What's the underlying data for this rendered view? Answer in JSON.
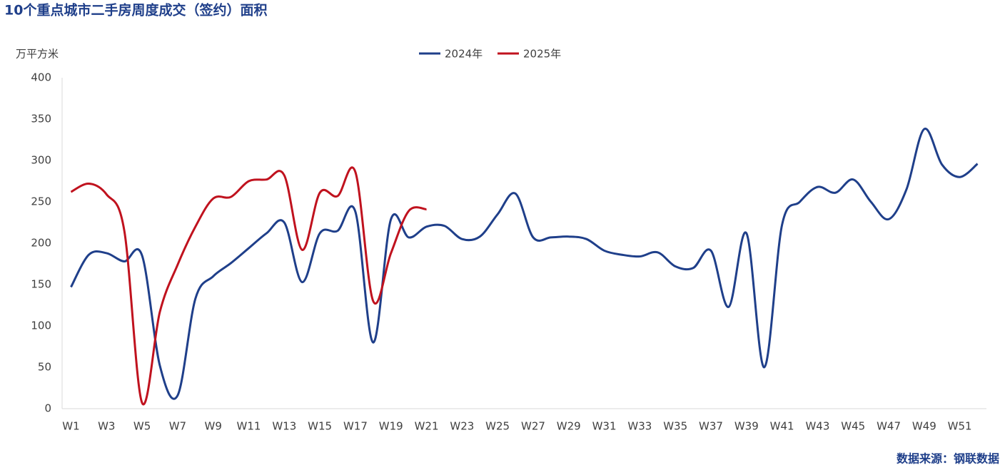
{
  "chart_data": {
    "type": "line",
    "title": "10个重点城市二手房周度成交（签约）面积",
    "y_label": "万平方米",
    "source": "数据来源：钢联数据",
    "categories": [
      "W1",
      null,
      "W3",
      null,
      "W5",
      null,
      "W7",
      null,
      "W9",
      null,
      "W11",
      null,
      "W13",
      null,
      "W15",
      null,
      "W17",
      null,
      "W19",
      null,
      "W21",
      null,
      "W23",
      null,
      "W25",
      null,
      "W27",
      null,
      "W29",
      null,
      "W31",
      null,
      "W33",
      null,
      "W35",
      null,
      "W37",
      null,
      "W39",
      null,
      "W41",
      null,
      "W43",
      null,
      "W45",
      null,
      "W47",
      null,
      "W49",
      null,
      "W51",
      null
    ],
    "series": [
      {
        "name": "2024年",
        "color": "#1f3f8a",
        "values": [
          147,
          186,
          188,
          178,
          185,
          52,
          16,
          133,
          160,
          176,
          194,
          212,
          225,
          153,
          212,
          215,
          238,
          80,
          229,
          207,
          220,
          221,
          205,
          208,
          235,
          260,
          207,
          207,
          208,
          205,
          191,
          186,
          184,
          189,
          172,
          170,
          191,
          123,
          212,
          50,
          222,
          250,
          268,
          261,
          277,
          250,
          229,
          265,
          338,
          295,
          280,
          296
        ]
      },
      {
        "name": "2025年",
        "color": "#c0121e",
        "values": [
          262,
          272,
          259,
          215,
          7,
          117,
          174,
          220,
          254,
          256,
          275,
          277,
          282,
          192,
          261,
          257,
          286,
          130,
          188,
          239,
          241,
          null,
          null,
          null,
          null,
          null,
          null,
          null,
          null,
          null,
          null,
          null,
          null,
          null,
          null,
          null,
          null,
          null,
          null,
          null,
          null,
          null,
          null,
          null,
          null,
          null,
          null,
          null,
          null,
          null,
          null,
          null
        ]
      }
    ],
    "ylim": [
      0,
      400
    ],
    "yticks": [
      0,
      50,
      100,
      150,
      200,
      250,
      300,
      350,
      400
    ],
    "grid": false,
    "legend": "top"
  }
}
